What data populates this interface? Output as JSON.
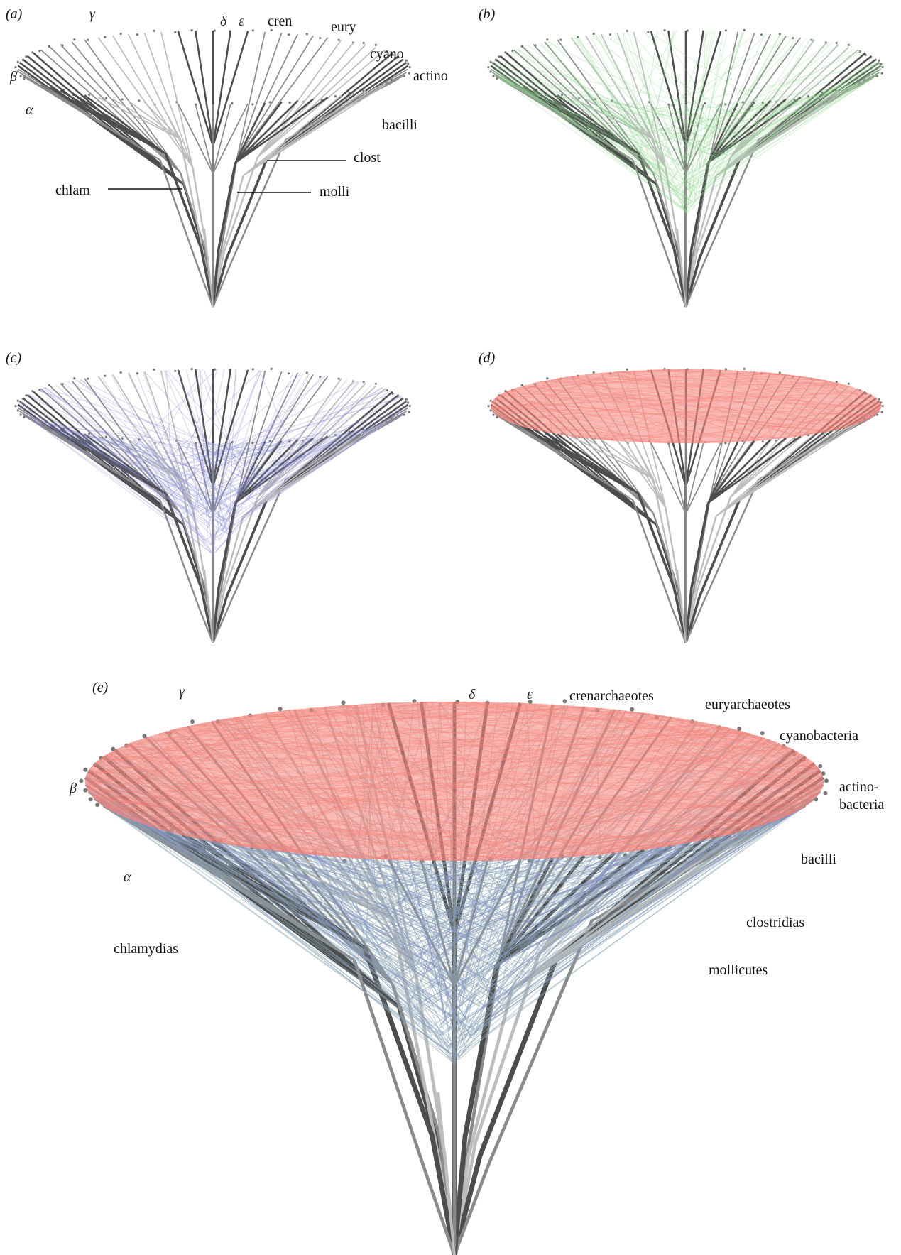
{
  "colors": {
    "branch_dark": "#4d4d4d",
    "branch_mid": "#8a8a8a",
    "branch_light": "#bdbdbd",
    "transfer_green": "#8fd88f",
    "transfer_violet": "#8a86d0",
    "transfer_salmon": "#f4837a",
    "leader_line": "#111111"
  },
  "panels": {
    "a": {
      "label": "(a)",
      "taxa": {
        "gamma": "γ",
        "delta": "δ",
        "epsilon": "ε",
        "cren": "cren",
        "eury": "eury",
        "cyano": "cyano",
        "actino": "actino",
        "beta": "β",
        "alpha": "α",
        "bacilli": "bacilli",
        "clost": "clost",
        "chlam": "chlam",
        "molli": "molli"
      }
    },
    "b": {
      "label": "(b)",
      "overlay": "green"
    },
    "c": {
      "label": "(c)",
      "overlay": "violet"
    },
    "d": {
      "label": "(d)",
      "overlay": "salmon"
    },
    "e": {
      "label": "(e)",
      "taxa": {
        "gamma": "γ",
        "delta": "δ",
        "epsilon": "ε",
        "cren": "crenarchaeotes",
        "eury": "euryarchaeotes",
        "cyano": "cyanobacteria",
        "actino_1": "actino-",
        "actino_2": "bacteria",
        "beta": "β",
        "alpha": "α",
        "bacilli": "bacilli",
        "clost": "clostridias",
        "chlam": "chlamydias",
        "molli": "mollicutes"
      }
    }
  }
}
